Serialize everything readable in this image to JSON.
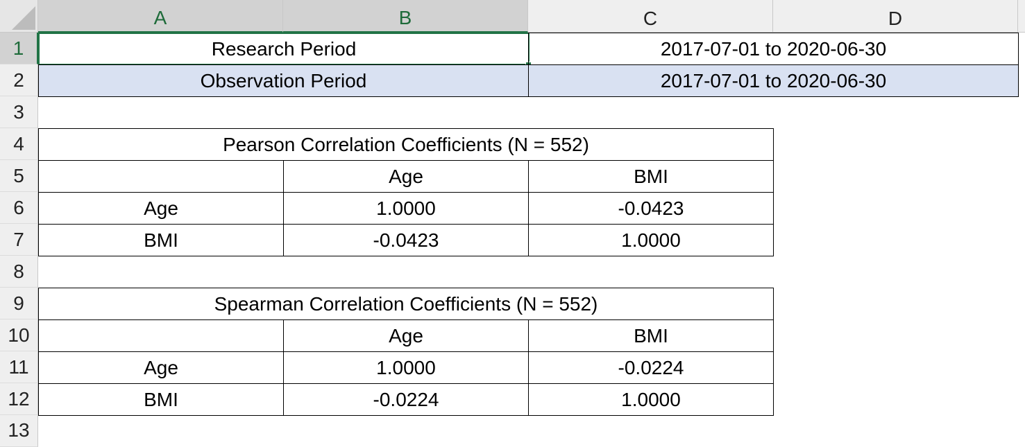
{
  "columns": [
    "A",
    "B",
    "C",
    "D"
  ],
  "rows": [
    "1",
    "2",
    "3",
    "4",
    "5",
    "6",
    "7",
    "8",
    "9",
    "10",
    "11",
    "12",
    "13"
  ],
  "row1": {
    "label": "Research Period",
    "value": "2017-07-01 to 2020-06-30"
  },
  "row2": {
    "label": "Observation Period",
    "value": "2017-07-01 to 2020-06-30"
  },
  "pearson": {
    "title": "Pearson Correlation Coefficients (N = 552)",
    "headers": [
      "",
      "Age",
      "BMI"
    ],
    "rows": [
      [
        "Age",
        "1.0000",
        "-0.0423"
      ],
      [
        "BMI",
        "-0.0423",
        "1.0000"
      ]
    ]
  },
  "spearman": {
    "title": "Spearman Correlation Coefficients (N = 552)",
    "headers": [
      "",
      "Age",
      "BMI"
    ],
    "rows": [
      [
        "Age",
        "1.0000",
        "-0.0224"
      ],
      [
        "BMI",
        "-0.0224",
        "1.0000"
      ]
    ]
  },
  "colors": {
    "selection": "#217346",
    "fill_blue": "#d9e1f2"
  }
}
